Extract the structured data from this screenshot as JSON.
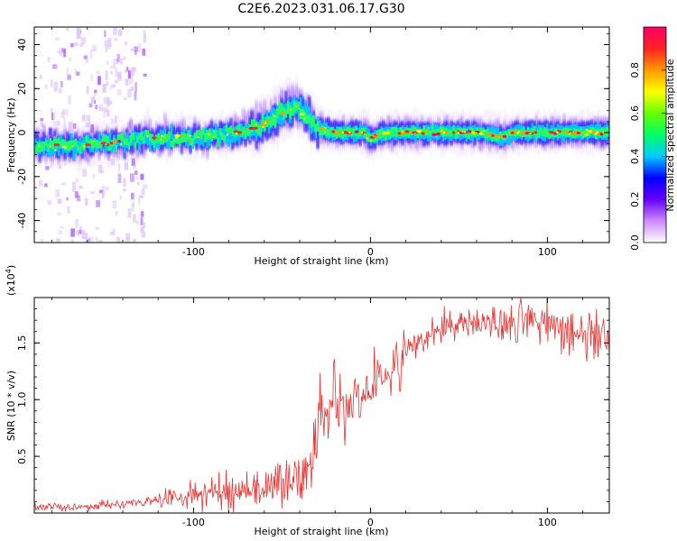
{
  "title": "C2E6.2023.031.06.17.G30",
  "chart_data": [
    {
      "type": "heatmap",
      "xlabel": "Height of straight line (km)",
      "ylabel": "Frequency (Hz)",
      "xlim": [
        -190,
        135
      ],
      "ylim": [
        -50,
        48
      ],
      "x_ticks": [
        -100,
        0,
        100
      ],
      "x_tick_labels": [
        "-100",
        "0",
        "100"
      ],
      "y_ticks": [
        40,
        20,
        0,
        -20,
        -40
      ],
      "y_tick_labels": [
        "40",
        "20",
        "0",
        "-20",
        "-40"
      ],
      "ridge": {
        "x": [
          -188,
          -170,
          -150,
          -130,
          -110,
          -95,
          -80,
          -70,
          -62,
          -55,
          -48,
          -42,
          -38,
          -34,
          -30,
          -25,
          -20,
          -10,
          -4,
          0,
          4,
          10,
          20,
          40,
          60,
          75,
          80,
          100,
          120,
          133
        ],
        "y": [
          -6,
          -6,
          -5,
          -3,
          -2,
          -2,
          -1,
          1,
          3,
          7,
          10,
          12,
          8,
          5,
          2,
          1,
          0,
          0,
          0,
          -3,
          -1,
          0,
          0,
          0,
          0,
          -2,
          0,
          0,
          0,
          0
        ]
      },
      "colorbar": {
        "label": "Normalized spectral amplitude",
        "range": [
          0,
          1
        ],
        "ticks": [
          0.0,
          0.2,
          0.4,
          0.6,
          0.8
        ],
        "tick_labels": [
          "0.0",
          "0.2",
          "0.4",
          "0.6",
          "0.8"
        ],
        "colors": [
          "#ffffff",
          "#cc88ff",
          "#6600ff",
          "#0000ff",
          "#00ccff",
          "#00ff66",
          "#66ff00",
          "#ffff00",
          "#ff9900",
          "#ff2222",
          "#ff0066"
        ]
      }
    },
    {
      "type": "line",
      "xlabel": "Height of straight line (km)",
      "ylabel": "SNR (10 * v/v)",
      "multiplier_label": "(x10",
      "multiplier_exp": "4",
      "multiplier_close": ")",
      "xlim": [
        -190,
        135
      ],
      "ylim": [
        0,
        19000
      ],
      "x_ticks": [
        -100,
        0,
        100
      ],
      "x_tick_labels": [
        "-100",
        "0",
        "100"
      ],
      "y_ticks": [
        5000,
        10000,
        15000
      ],
      "y_tick_labels": [
        "0.5",
        "1.0",
        "1.5"
      ],
      "line_color": "#ee3333",
      "series": [
        {
          "x": [
            -190,
            -170,
            -150,
            -130,
            -120,
            -100,
            -80,
            -60,
            -40,
            -32,
            -30,
            -28,
            -25,
            -20,
            -10,
            0,
            10,
            20,
            30,
            40,
            50,
            60,
            70,
            80,
            90,
            100,
            110,
            120,
            133
          ],
          "y": [
            500,
            500,
            700,
            900,
            1200,
            1600,
            1900,
            2300,
            3000,
            3800,
            7000,
            9000,
            8500,
            9000,
            9600,
            10600,
            12000,
            14200,
            15500,
            16500,
            16800,
            16700,
            16600,
            16700,
            16900,
            16600,
            16300,
            15800,
            15700
          ]
        }
      ]
    }
  ]
}
